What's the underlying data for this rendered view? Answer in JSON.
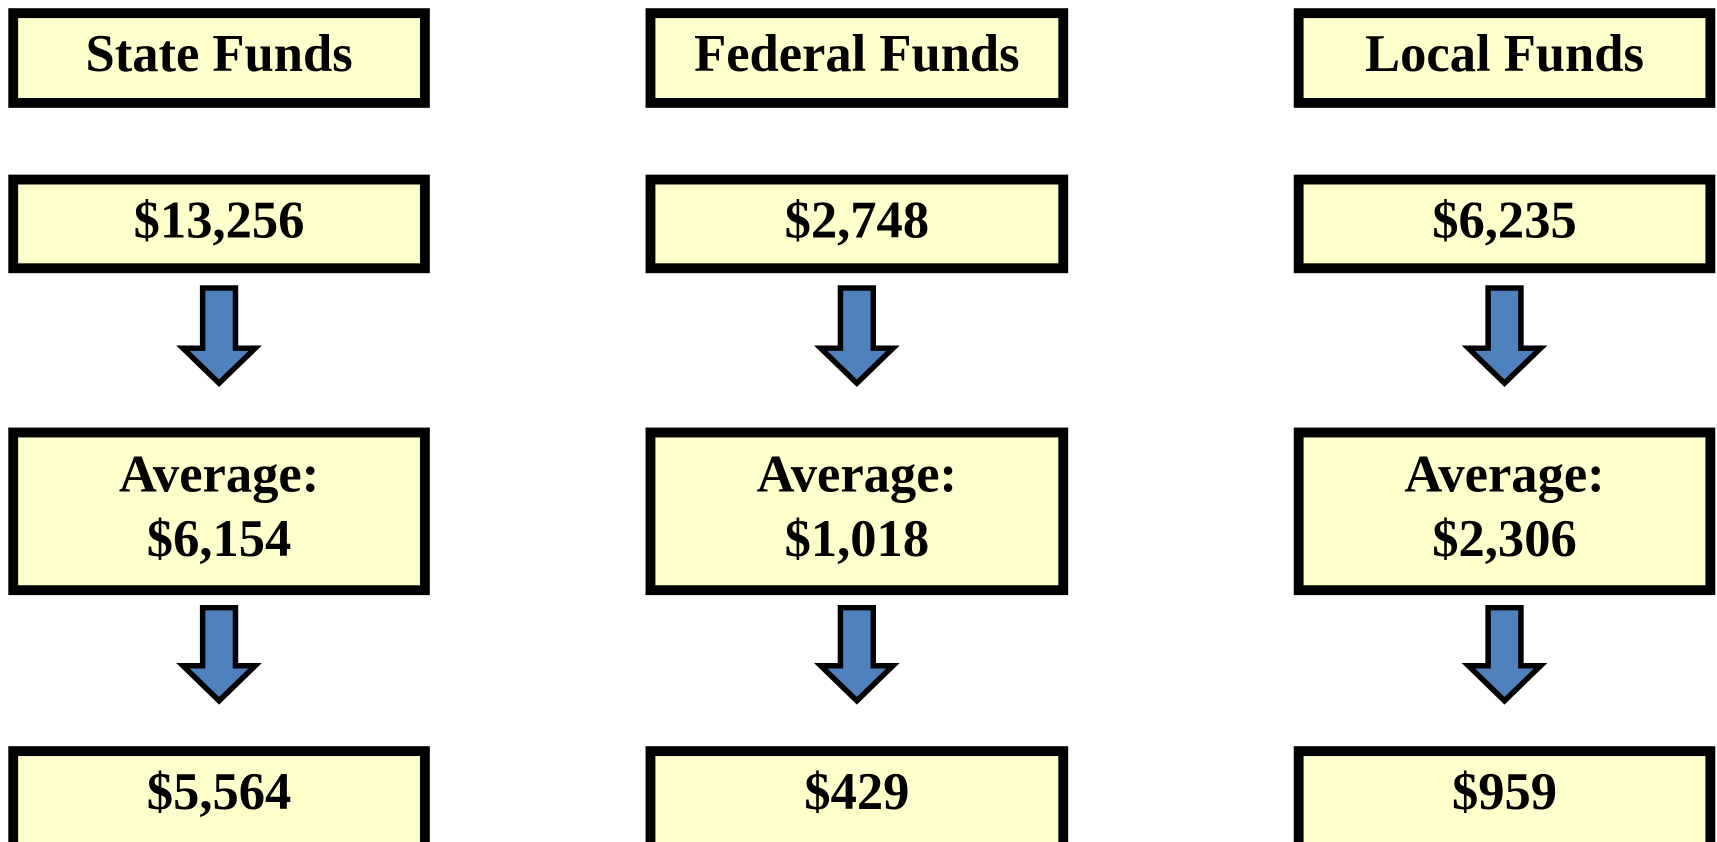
{
  "columns": [
    {
      "title": "State Funds",
      "amount": "$13,256",
      "average": {
        "label": "Average:",
        "value": "$6,154"
      },
      "result": "$5,564"
    },
    {
      "title": "Federal Funds",
      "amount": "$2,748",
      "average": {
        "label": "Average:",
        "value": "$1,018"
      },
      "result": "$429"
    },
    {
      "title": "Local Funds",
      "amount": "$6,235",
      "average": {
        "label": "Average:",
        "value": "$2,306"
      },
      "result": "$959"
    }
  ]
}
